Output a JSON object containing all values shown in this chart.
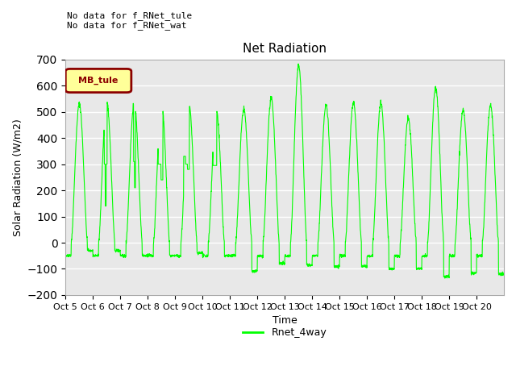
{
  "title": "Net Radiation",
  "xlabel": "Time",
  "ylabel": "Solar Radiation (W/m2)",
  "ylim": [
    -200,
    700
  ],
  "yticks": [
    -200,
    -100,
    0,
    100,
    200,
    300,
    400,
    500,
    600,
    700
  ],
  "xtick_labels": [
    "Oct 5",
    "Oct 6",
    "Oct 7",
    "Oct 8",
    "Oct 9",
    "Oct 10",
    "Oct 11",
    "Oct 12",
    "Oct 13",
    "Oct 14",
    "Oct 15",
    "Oct 16",
    "Oct 17",
    "Oct 18",
    "Oct 19",
    "Oct 20"
  ],
  "line_color": "#00FF00",
  "line_label": "Rnet_4way",
  "bg_color": "#E8E8E8",
  "annotation_text1": "No data for f_RNet_tule",
  "annotation_text2": "No data for f_RNet_wat",
  "legend_label": "MB_tule",
  "legend_facecolor": "#FFFF99",
  "legend_edgecolor": "#8B0000",
  "n_days": 16,
  "points_per_day": 144,
  "night_value": -50,
  "day_peaks": [
    530,
    540,
    535,
    530,
    525,
    505,
    510,
    550,
    675,
    525,
    535,
    530,
    475,
    590,
    505,
    525
  ],
  "day_dips": [
    -30,
    -30,
    -50,
    -50,
    -40,
    -50,
    -110,
    -80,
    -85,
    -90,
    -90,
    -100,
    -100,
    -130,
    -115,
    -120
  ]
}
